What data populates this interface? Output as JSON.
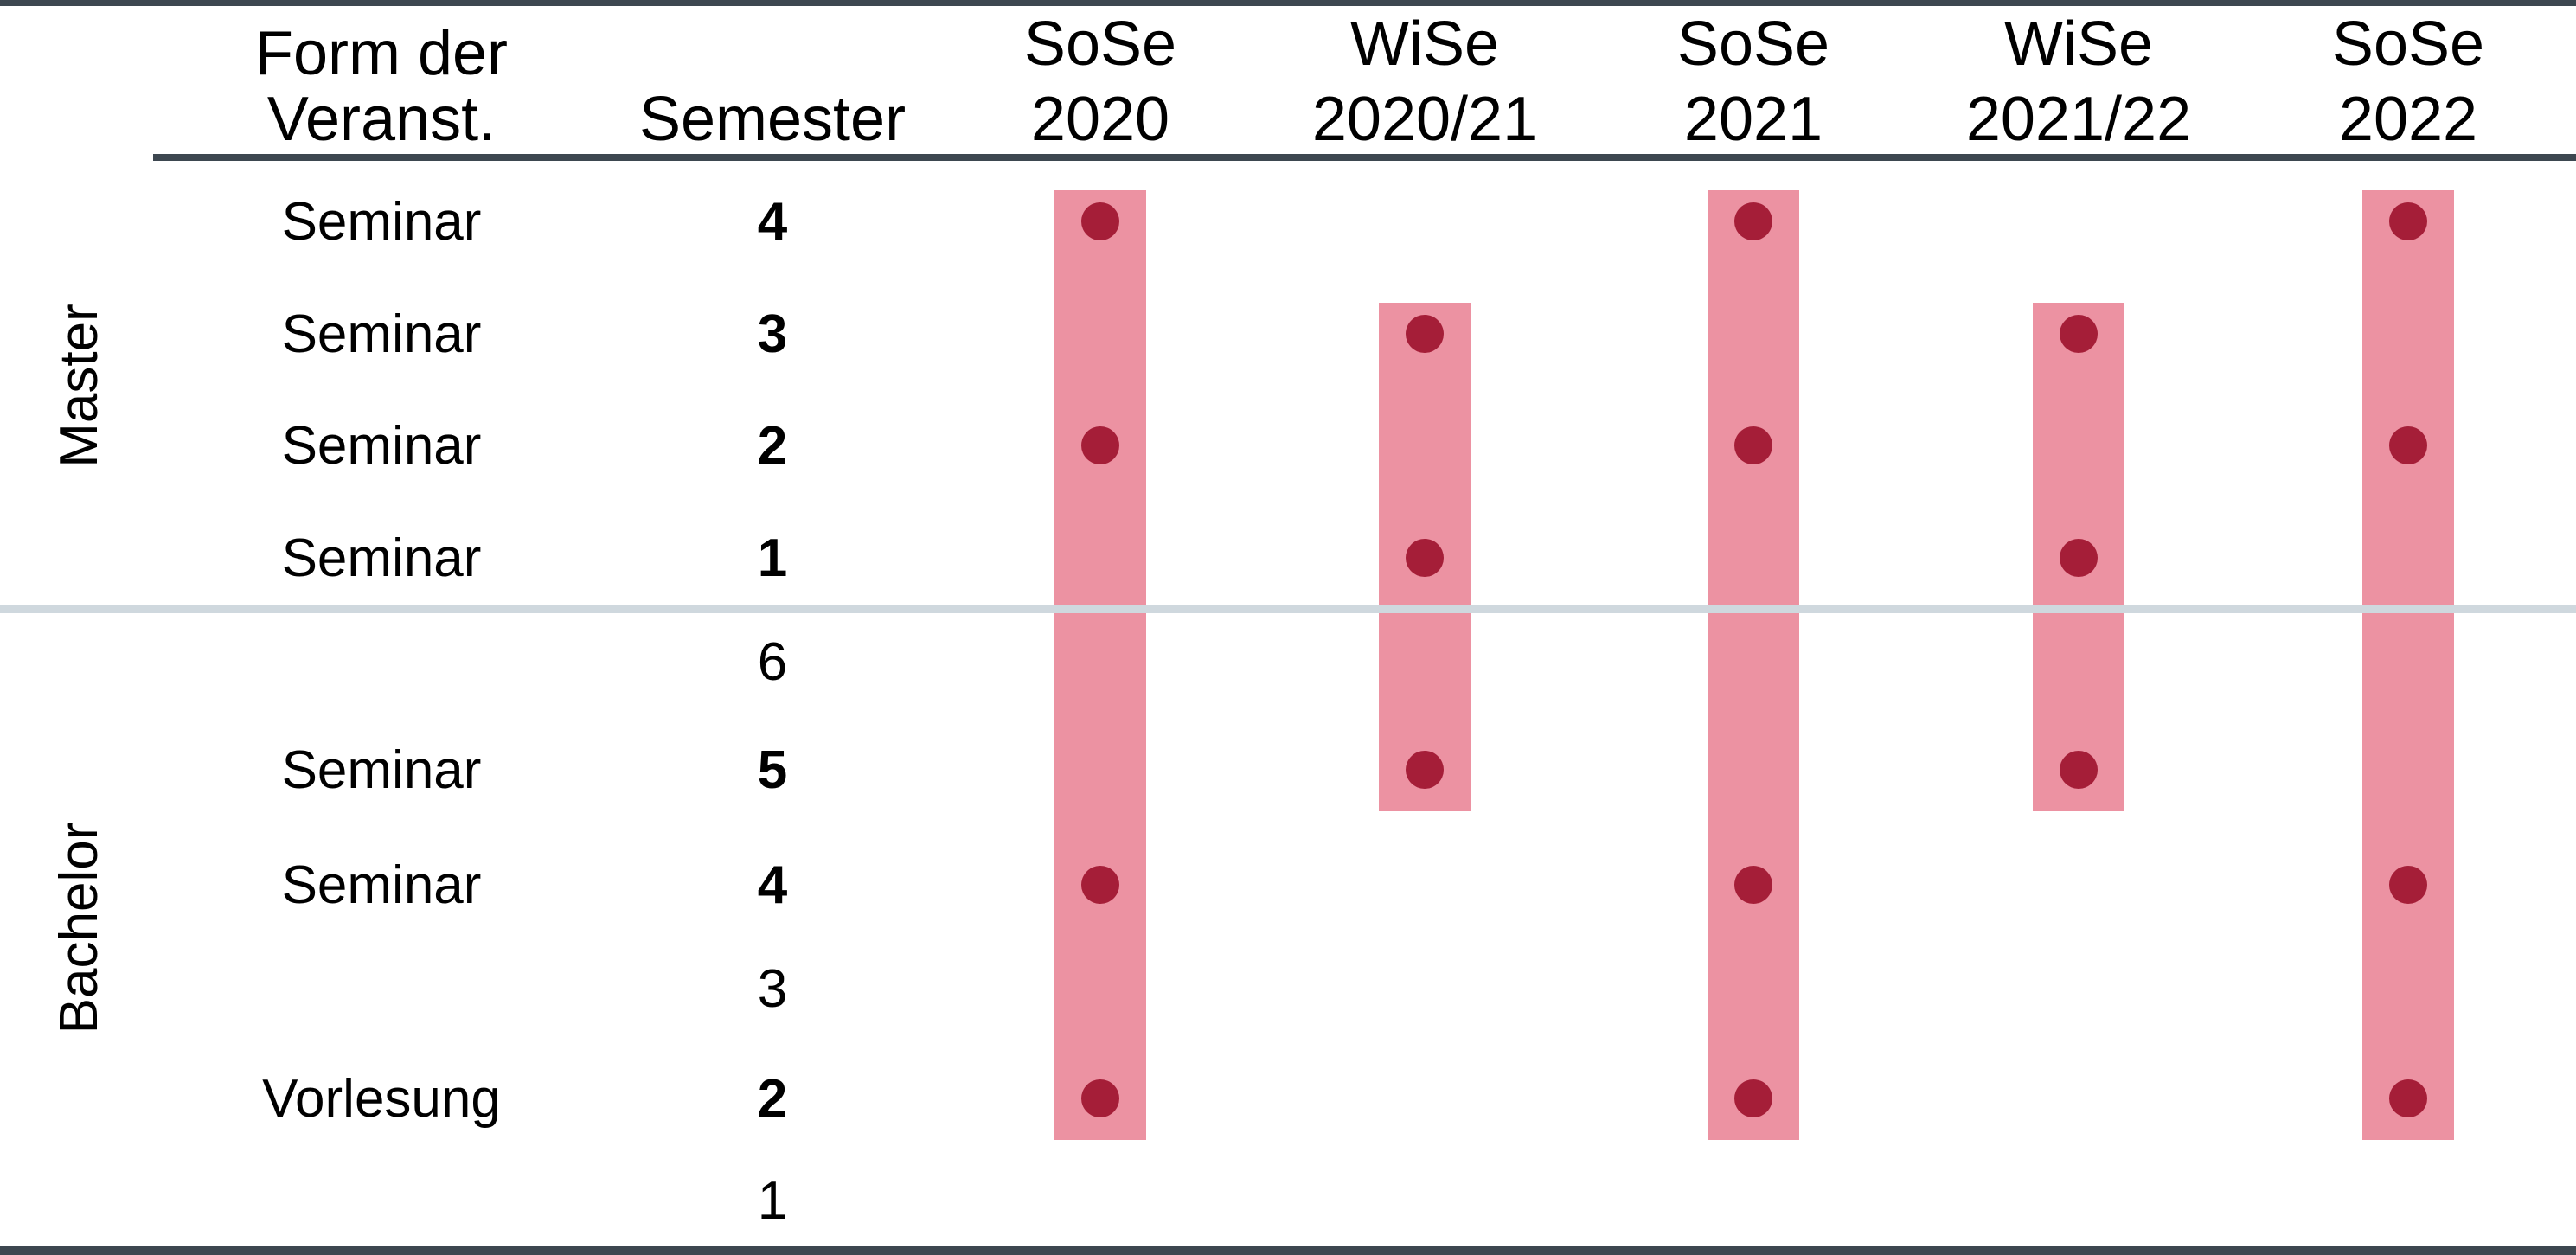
{
  "header": {
    "form_line1": "Form der",
    "form_line2": "Veranst.",
    "semester": "Semester"
  },
  "terms": [
    {
      "line1": "SoSe",
      "line2": "2020"
    },
    {
      "line1": "WiSe",
      "line2": "2020/21"
    },
    {
      "line1": "SoSe",
      "line2": "2021"
    },
    {
      "line1": "WiSe",
      "line2": "2021/22"
    },
    {
      "line1": "SoSe",
      "line2": "2022"
    }
  ],
  "sections": [
    {
      "label": "Master"
    },
    {
      "label": "Bachelor"
    }
  ],
  "rows": [
    {
      "section": "Master",
      "form": "Seminar",
      "semester": "4",
      "bold": true,
      "offered": [
        true,
        false,
        true,
        false,
        true
      ]
    },
    {
      "section": "Master",
      "form": "Seminar",
      "semester": "3",
      "bold": true,
      "offered": [
        false,
        true,
        false,
        true,
        false
      ]
    },
    {
      "section": "Master",
      "form": "Seminar",
      "semester": "2",
      "bold": true,
      "offered": [
        true,
        false,
        true,
        false,
        true
      ]
    },
    {
      "section": "Master",
      "form": "Seminar",
      "semester": "1",
      "bold": true,
      "offered": [
        false,
        true,
        false,
        true,
        false
      ]
    },
    {
      "section": "Bachelor",
      "form": "",
      "semester": "6",
      "bold": false,
      "offered": [
        false,
        false,
        false,
        false,
        false
      ]
    },
    {
      "section": "Bachelor",
      "form": "Seminar",
      "semester": "5",
      "bold": true,
      "offered": [
        false,
        true,
        false,
        true,
        false
      ]
    },
    {
      "section": "Bachelor",
      "form": "Seminar",
      "semester": "4",
      "bold": true,
      "offered": [
        true,
        false,
        true,
        false,
        true
      ]
    },
    {
      "section": "Bachelor",
      "form": "",
      "semester": "3",
      "bold": false,
      "offered": [
        false,
        false,
        false,
        false,
        false
      ]
    },
    {
      "section": "Bachelor",
      "form": "Vorlesung",
      "semester": "2",
      "bold": true,
      "offered": [
        true,
        false,
        true,
        false,
        true
      ]
    },
    {
      "section": "Bachelor",
      "form": "",
      "semester": "1",
      "bold": false,
      "offered": [
        false,
        false,
        false,
        false,
        false
      ]
    }
  ],
  "colors": {
    "term_bar": "#ec92a2",
    "dot": "#a51e38",
    "rule_dark": "#3d4750",
    "section_divider": "#cfd8de"
  }
}
